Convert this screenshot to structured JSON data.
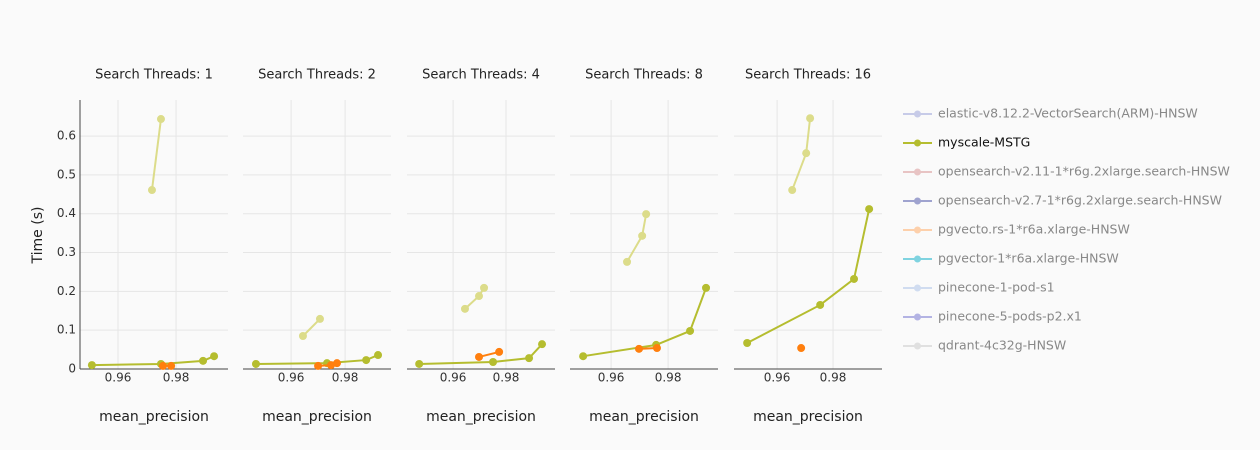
{
  "chart_data": [
    {
      "type": "line",
      "title": "Search Threads: 1",
      "x_label": "mean_precision",
      "y_label": "Time (s)",
      "xlim": [
        0.9469,
        0.9979
      ],
      "ylim": [
        0,
        0.693
      ],
      "xticks": [
        0.96,
        0.98
      ],
      "yticks": [
        0,
        0.1,
        0.2,
        0.3,
        0.4,
        0.5,
        0.6
      ],
      "ytick_labels": true,
      "grid": true,
      "series": [
        {
          "name": "myscale-MSTG",
          "color": "#b5bd2f",
          "x": [
            0.951,
            0.9748,
            0.9893,
            0.9931
          ],
          "values": [
            0.01,
            0.013,
            0.021,
            0.033
          ]
        },
        {
          "color": "#dcdc8a",
          "x": [
            0.9717,
            0.9748
          ],
          "values": [
            0.461,
            0.644
          ]
        },
        {
          "name": "pgvecto.rs-1*r6a.xlarge-HNSW",
          "color": "#ff7f0e",
          "x": [
            0.9755,
            0.9783
          ],
          "values": [
            0.008,
            0.008
          ]
        }
      ]
    },
    {
      "type": "line",
      "title": "Search Threads: 2",
      "x_label": "mean_precision",
      "xlim": [
        0.9422,
        0.997
      ],
      "ylim": [
        0,
        0.693
      ],
      "xticks": [
        0.96,
        0.98
      ],
      "yticks": [
        0,
        0.1,
        0.2,
        0.3,
        0.4,
        0.5,
        0.6
      ],
      "ytick_labels": false,
      "grid": true,
      "series": [
        {
          "name": "myscale-MSTG",
          "color": "#b5bd2f",
          "x": [
            0.947,
            0.9733,
            0.9878,
            0.9922
          ],
          "values": [
            0.013,
            0.015,
            0.023,
            0.036
          ]
        },
        {
          "color": "#dcdc8a",
          "x": [
            0.9644,
            0.9707
          ],
          "values": [
            0.085,
            0.129
          ]
        },
        {
          "name": "pgvecto.rs-1*r6a.xlarge-HNSW",
          "color": "#ff7f0e",
          "x": [
            0.97,
            0.9748,
            0.977
          ],
          "values": [
            0.008,
            0.01,
            0.015
          ]
        }
      ]
    },
    {
      "type": "line",
      "title": "Search Threads: 4",
      "x_label": "mean_precision",
      "xlim": [
        0.9426,
        0.9985
      ],
      "ylim": [
        0,
        0.693
      ],
      "xticks": [
        0.96,
        0.98
      ],
      "yticks": [
        0,
        0.1,
        0.2,
        0.3,
        0.4,
        0.5,
        0.6
      ],
      "ytick_labels": false,
      "grid": true,
      "series": [
        {
          "name": "myscale-MSTG",
          "color": "#b5bd2f",
          "x": [
            0.9472,
            0.9751,
            0.9887,
            0.9936
          ],
          "values": [
            0.013,
            0.018,
            0.028,
            0.064
          ]
        },
        {
          "color": "#dcdc8a",
          "x": [
            0.9645,
            0.9698,
            0.9717
          ],
          "values": [
            0.155,
            0.188,
            0.209
          ]
        },
        {
          "name": "pgvecto.rs-1*r6a.xlarge-HNSW",
          "color": "#ff7f0e",
          "x": [
            0.9698,
            0.9774
          ],
          "values": [
            0.031,
            0.044
          ]
        }
      ]
    },
    {
      "type": "line",
      "title": "Search Threads: 8",
      "x_label": "mean_precision",
      "xlim": [
        0.9456,
        0.9975
      ],
      "ylim": [
        0,
        0.693
      ],
      "xticks": [
        0.96,
        0.98
      ],
      "yticks": [
        0,
        0.1,
        0.2,
        0.3,
        0.4,
        0.5,
        0.6
      ],
      "ytick_labels": false,
      "grid": true,
      "series": [
        {
          "name": "myscale-MSTG",
          "color": "#b5bd2f",
          "x": [
            0.9502,
            0.9758,
            0.9877,
            0.9933
          ],
          "values": [
            0.033,
            0.062,
            0.098,
            0.209
          ]
        },
        {
          "color": "#dcdc8a",
          "x": [
            0.9656,
            0.9709,
            0.9723
          ],
          "values": [
            0.276,
            0.343,
            0.399
          ]
        },
        {
          "name": "pgvecto.rs-1*r6a.xlarge-HNSW",
          "color": "#ff7f0e",
          "x": [
            0.9698,
            0.9761
          ],
          "values": [
            0.052,
            0.054
          ]
        }
      ]
    },
    {
      "type": "line",
      "title": "Search Threads: 16",
      "x_label": "mean_precision",
      "xlim": [
        0.9446,
        0.9975
      ],
      "ylim": [
        0,
        0.693
      ],
      "xticks": [
        0.96,
        0.98
      ],
      "yticks": [
        0,
        0.1,
        0.2,
        0.3,
        0.4,
        0.5,
        0.6
      ],
      "ytick_labels": false,
      "grid": true,
      "series": [
        {
          "name": "myscale-MSTG",
          "color": "#b5bd2f",
          "x": [
            0.9493,
            0.9754,
            0.9875,
            0.9929
          ],
          "values": [
            0.067,
            0.165,
            0.232,
            0.412
          ]
        },
        {
          "color": "#dcdc8a",
          "x": [
            0.9654,
            0.9704,
            0.9718
          ],
          "values": [
            0.461,
            0.556,
            0.646
          ]
        },
        {
          "name": "pgvecto.rs-1*r6a.xlarge-HNSW",
          "color": "#ff7f0e",
          "x": [
            0.9686
          ],
          "values": [
            0.054
          ]
        }
      ]
    }
  ],
  "legend": {
    "items": [
      {
        "name": "elastic-v8.12.2-VectorSearch(ARM)-HNSW",
        "color": "#c7cbe8",
        "active": false
      },
      {
        "name": "myscale-MSTG",
        "color": "#b5bd2f",
        "active": true
      },
      {
        "name": "opensearch-v2.11-1*r6g.2xlarge.search-HNSW",
        "color": "#e8c4c4",
        "active": false
      },
      {
        "name": "opensearch-v2.7-1*r6g.2xlarge.search-HNSW",
        "color": "#9fa3cf",
        "active": false
      },
      {
        "name": "pgvecto.rs-1*r6a.xlarge-HNSW",
        "color": "#fdd0ab",
        "active": false
      },
      {
        "name": "pgvector-1*r6a.xlarge-HNSW",
        "color": "#7fd3e0",
        "active": false
      },
      {
        "name": "pinecone-1-pod-s1",
        "color": "#d0dcf0",
        "active": false
      },
      {
        "name": "pinecone-5-pods-p2.x1",
        "color": "#b3b3e3",
        "active": false
      },
      {
        "name": "qdrant-4c32g-HNSW",
        "color": "#e0e0e0",
        "active": false
      }
    ]
  }
}
